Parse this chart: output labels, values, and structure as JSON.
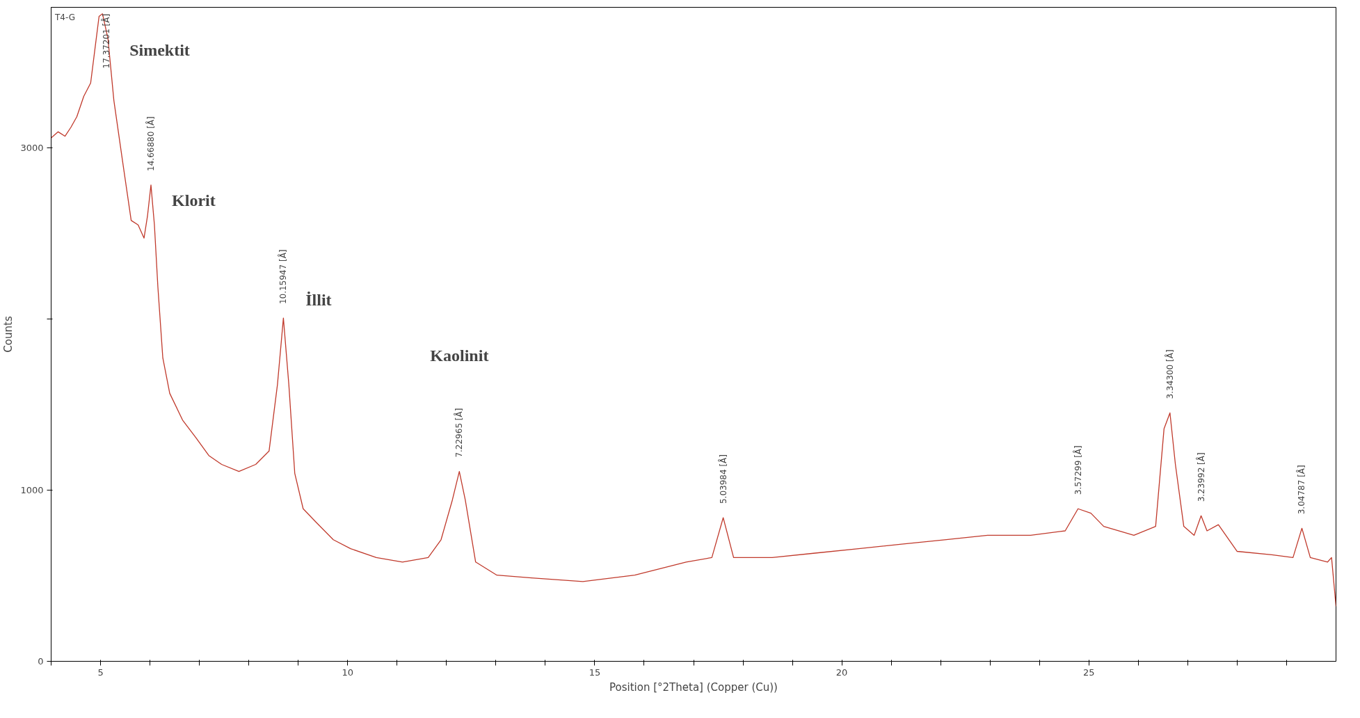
{
  "chart_data": {
    "type": "line",
    "xlabel": "Position [°2Theta] (Copper (Cu))",
    "ylabel": "Counts",
    "grid": false,
    "marker": "none",
    "line_style": "solid",
    "xlim": [
      4,
      30
    ],
    "ylim": [
      0,
      3820
    ],
    "xticks": [
      {
        "value": 4,
        "label": null
      },
      5,
      {
        "value": 6,
        "label": null
      },
      {
        "value": 7,
        "label": null
      },
      {
        "value": 8,
        "label": null
      },
      {
        "value": 9,
        "label": null
      },
      10,
      {
        "value": 11,
        "label": null
      },
      {
        "value": 12,
        "label": null
      },
      {
        "value": 13,
        "label": null
      },
      {
        "value": 14,
        "label": null
      },
      15,
      {
        "value": 16,
        "label": null
      },
      {
        "value": 17,
        "label": null
      },
      {
        "value": 18,
        "label": null
      },
      {
        "value": 19,
        "label": null
      },
      20,
      {
        "value": 21,
        "label": null
      },
      {
        "value": 22,
        "label": null
      },
      {
        "value": 23,
        "label": null
      },
      {
        "value": 24,
        "label": null
      },
      25,
      {
        "value": 26,
        "label": null
      },
      {
        "value": 27,
        "label": null
      },
      {
        "value": 28,
        "label": null
      },
      {
        "value": 29,
        "label": null
      }
    ],
    "yticks": [
      0,
      1000,
      {
        "value": 2000,
        "label": null
      },
      3000
    ],
    "x": [
      4.0,
      4.14,
      4.28,
      4.4,
      4.52,
      4.66,
      4.8,
      4.89,
      4.97,
      5.04,
      5.15,
      5.27,
      5.45,
      5.62,
      5.76,
      5.88,
      5.95,
      6.02,
      6.09,
      6.16,
      6.26,
      6.4,
      6.66,
      6.93,
      7.19,
      7.45,
      7.8,
      8.14,
      8.41,
      8.58,
      8.7,
      8.81,
      8.93,
      9.1,
      9.36,
      9.71,
      10.06,
      10.58,
      11.11,
      11.63,
      11.89,
      12.12,
      12.26,
      12.38,
      12.59,
      13.02,
      13.72,
      14.76,
      15.81,
      16.85,
      17.37,
      17.6,
      17.81,
      18.59,
      19.46,
      20.34,
      21.21,
      22.08,
      22.95,
      23.82,
      24.52,
      24.78,
      25.04,
      25.3,
      25.91,
      26.35,
      26.52,
      26.64,
      26.75,
      26.92,
      27.13,
      27.27,
      27.39,
      27.62,
      28.0,
      28.7,
      29.13,
      29.31,
      29.48,
      29.83,
      29.91,
      30.0
    ],
    "series": [
      {
        "color": "#c0392b",
        "values": [
          3057,
          3093,
          3067,
          3119,
          3181,
          3300,
          3378,
          3585,
          3767,
          3782,
          3637,
          3275,
          2912,
          2575,
          2549,
          2472,
          2601,
          2782,
          2549,
          2187,
          1772,
          1565,
          1409,
          1306,
          1202,
          1150,
          1109,
          1150,
          1228,
          1617,
          2005,
          1617,
          1098,
          891,
          813,
          710,
          658,
          606,
          580,
          606,
          710,
          943,
          1109,
          943,
          580,
          503,
          487,
          466,
          503,
          580,
          606,
          839,
          606,
          606,
          632,
          658,
          684,
          710,
          736,
          736,
          762,
          891,
          865,
          788,
          736,
          788,
          1358,
          1451,
          1150,
          788,
          736,
          850,
          762,
          798,
          642,
          622,
          606,
          777,
          606,
          580,
          606,
          321
        ]
      }
    ],
    "annotations": [
      "T4-G",
      "Simektit",
      "Klorit",
      "İllit",
      "Kaolinit",
      {
        "text": "17.37201 [Å]",
        "x": 5.04,
        "y": 3782
      },
      {
        "text": "14.66880 [Å]",
        "x": 6.02,
        "y": 2782
      },
      {
        "text": "10.15947 [Å]",
        "x": 8.7,
        "y": 2005
      },
      {
        "text": "7.22965 [Å]",
        "x": 12.26,
        "y": 1109
      },
      {
        "text": "5.03984 [Å]",
        "x": 17.6,
        "y": 839
      },
      {
        "text": "3.57299 [Å]",
        "x": 24.78,
        "y": 891
      },
      {
        "text": "3.34300 [Å]",
        "x": 26.64,
        "y": 1451
      },
      {
        "text": "3.23992 [Å]",
        "x": 27.27,
        "y": 850
      },
      {
        "text": "3.04787 [Å]",
        "x": 29.31,
        "y": 777
      }
    ]
  }
}
